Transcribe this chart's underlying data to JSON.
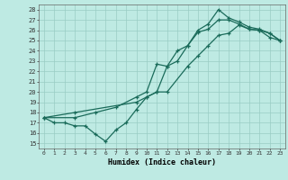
{
  "title": "",
  "xlabel": "Humidex (Indice chaleur)",
  "bg_color": "#beeae3",
  "line_color": "#1a6b5a",
  "grid_color": "#99ccc4",
  "xlim": [
    -0.5,
    23.5
  ],
  "ylim": [
    14.5,
    28.5
  ],
  "xticks": [
    0,
    1,
    2,
    3,
    4,
    5,
    6,
    7,
    8,
    9,
    10,
    11,
    12,
    13,
    14,
    15,
    16,
    17,
    18,
    19,
    20,
    21,
    22,
    23
  ],
  "yticks": [
    15,
    16,
    17,
    18,
    19,
    20,
    21,
    22,
    23,
    24,
    25,
    26,
    27,
    28
  ],
  "lines": [
    {
      "x": [
        0,
        1,
        2,
        3,
        4,
        5,
        6,
        7,
        8,
        9,
        10,
        11,
        12,
        13,
        14,
        15,
        16,
        17,
        18,
        19,
        20,
        21,
        22,
        23
      ],
      "y": [
        17.5,
        17,
        17,
        16.7,
        16.7,
        15.9,
        15.2,
        16.3,
        17,
        18.3,
        19.5,
        20,
        22.5,
        24,
        24.5,
        25.8,
        26.1,
        27,
        27,
        26.6,
        26.1,
        26,
        25.3,
        25
      ]
    },
    {
      "x": [
        0,
        3,
        5,
        7,
        9,
        10,
        11,
        12,
        13,
        14,
        15,
        16,
        17,
        18,
        19,
        20,
        21,
        22,
        23
      ],
      "y": [
        17.5,
        17.5,
        18,
        18.5,
        19.5,
        20,
        22.7,
        22.5,
        23,
        24.5,
        26,
        26.6,
        28,
        27.2,
        26.8,
        26.3,
        26.1,
        25.7,
        25
      ]
    },
    {
      "x": [
        0,
        3,
        9,
        10,
        11,
        12,
        14,
        15,
        16,
        17,
        18,
        19,
        20,
        21,
        22,
        23
      ],
      "y": [
        17.5,
        18,
        19,
        19.5,
        20,
        20,
        22.5,
        23.5,
        24.5,
        25.5,
        25.7,
        26.5,
        26.1,
        26,
        25.7,
        25
      ]
    }
  ]
}
